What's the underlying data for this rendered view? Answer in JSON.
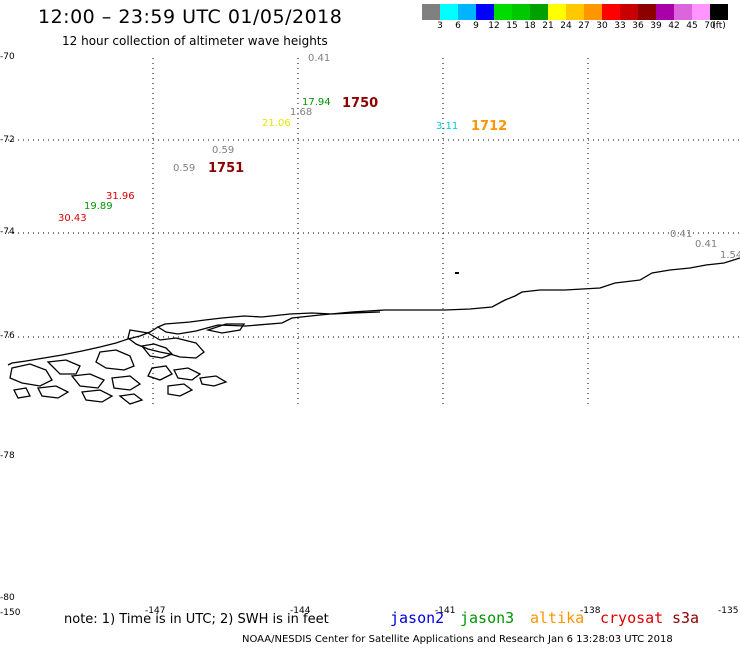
{
  "header": {
    "title": "12:00 – 23:59 UTC 01/05/2018",
    "subtitle": "12 hour collection of altimeter wave heights"
  },
  "legend": {
    "colors": [
      "#808080",
      "#00ffff",
      "#00b4ff",
      "#0000ff",
      "#00dc00",
      "#00c800",
      "#00a000",
      "#ffff00",
      "#ffc800",
      "#ff9600",
      "#ff0000",
      "#c80000",
      "#8c0000",
      "#aa00aa",
      "#dc64dc",
      "#ff96ff",
      "#000000"
    ],
    "ticks": [
      "3",
      "6",
      "9",
      "12",
      "15",
      "18",
      "21",
      "24",
      "27",
      "30",
      "33",
      "36",
      "39",
      "42",
      "45",
      "70",
      "(ft)"
    ]
  },
  "axes": {
    "lat_labels": [
      "-70",
      "-72",
      "-74",
      "-76",
      "-78",
      "-80"
    ],
    "lon_labels": [
      "-150",
      "-147",
      "-144",
      "-141",
      "-138",
      "-135"
    ]
  },
  "observations": [
    {
      "id": "o1",
      "value": "0.41",
      "color": "#808080"
    },
    {
      "id": "o2",
      "value": "17.94",
      "color": "#009600"
    },
    {
      "id": "o3",
      "value": "1.68",
      "color": "#808080"
    },
    {
      "id": "o4",
      "value": "21.06",
      "color": "#e6e600"
    },
    {
      "id": "o5",
      "value": "3.11",
      "color": "#00c8dc"
    },
    {
      "id": "o6",
      "value": "0.59",
      "color": "#808080"
    },
    {
      "id": "o7",
      "value": "0.59",
      "color": "#808080"
    },
    {
      "id": "o8",
      "value": "31.96",
      "color": "#dc0000"
    },
    {
      "id": "o9",
      "value": "19.89",
      "color": "#009600"
    },
    {
      "id": "o10",
      "value": "30.43",
      "color": "#dc0000"
    },
    {
      "id": "o11",
      "value": "0.41",
      "color": "#808080"
    },
    {
      "id": "o12",
      "value": "0.41",
      "color": "#808080"
    },
    {
      "id": "o13",
      "value": "1.54",
      "color": "#808080"
    }
  ],
  "track_times": [
    {
      "id": "t1",
      "value": "1750",
      "color": "#8c0000"
    },
    {
      "id": "t2",
      "value": "1712",
      "color": "#ff9600"
    },
    {
      "id": "t3",
      "value": "1751",
      "color": "#8c0000"
    }
  ],
  "footer": {
    "note": "note: 1) Time is in UTC; 2) SWH is in feet",
    "satellites": [
      {
        "name": "jason2",
        "color": "#0000dc"
      },
      {
        "name": "jason3",
        "color": "#009600"
      },
      {
        "name": "altika",
        "color": "#ff9600"
      },
      {
        "name": "cryosat",
        "color": "#dc0000"
      },
      {
        "name": "s3a",
        "color": "#8c0000"
      }
    ],
    "credit": "NOAA/NESDIS Center for Satellite Applications and Research    Jan  6 13:28:03 UTC 2018"
  }
}
